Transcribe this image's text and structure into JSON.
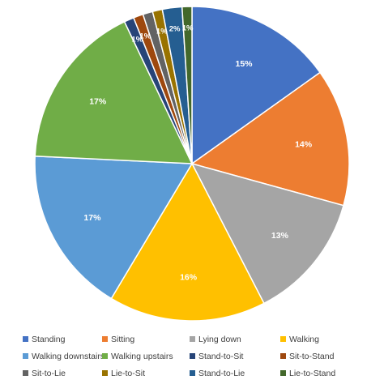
{
  "chart_data": {
    "type": "pie",
    "title": "",
    "legend_position": "bottom",
    "slices": [
      {
        "name": "Standing",
        "value": 15,
        "label": "15%",
        "color": "#4472C4"
      },
      {
        "name": "Sitting",
        "value": 14,
        "label": "14%",
        "color": "#ED7D31"
      },
      {
        "name": "Lying down",
        "value": 13,
        "label": "13%",
        "color": "#A5A5A5"
      },
      {
        "name": "Walking",
        "value": 16,
        "label": "16%",
        "color": "#FFC000"
      },
      {
        "name": "Walking downstairs",
        "value": 17,
        "label": "17%",
        "color": "#5B9BD5"
      },
      {
        "name": "Walking upstairs",
        "value": 17,
        "label": "17%",
        "color": "#70AD47"
      },
      {
        "name": "Stand-to-Sit",
        "value": 1,
        "label": "1%",
        "color": "#264478"
      },
      {
        "name": "Sit-to-Stand",
        "value": 1,
        "label": "1%",
        "color": "#9E480E"
      },
      {
        "name": "Sit-to-Lie",
        "value": 1,
        "label": "",
        "color": "#636363"
      },
      {
        "name": "Lie-to-Sit",
        "value": 1,
        "label": "1%",
        "color": "#997300"
      },
      {
        "name": "Stand-to-Lie",
        "value": 2,
        "label": "2%",
        "color": "#255E91"
      },
      {
        "name": "Lie-to-Stand",
        "value": 1,
        "label": "1%",
        "color": "#43682B"
      }
    ]
  }
}
